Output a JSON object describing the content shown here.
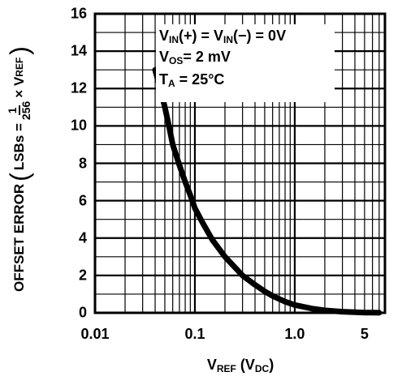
{
  "chart_data": {
    "type": "line",
    "x_scale": "log",
    "xlim": [
      0.01,
      8
    ],
    "ylim": [
      0,
      16
    ],
    "grid": true,
    "x_ticks": [
      "0.01",
      "0.1",
      "1.0",
      "5"
    ],
    "x_tick_values": [
      0.01,
      0.1,
      1.0,
      5
    ],
    "y_ticks": [
      "0",
      "2",
      "4",
      "6",
      "8",
      "10",
      "12",
      "14",
      "16"
    ],
    "xlabel": {
      "main": "V",
      "sub": "REF",
      "unit_open": " (V",
      "unit_sub": "DC",
      "unit_close": ")"
    },
    "ylabel": {
      "prefix": "OFFSET ERROR",
      "lsbs": "LSBs =",
      "num": "1",
      "den": "256",
      "times": "× V",
      "sub": "REF"
    },
    "annotations": {
      "line1": {
        "a": "V",
        "a_sub": "IN",
        "b": "(+) = V",
        "b_sub": "IN",
        "c": "(−) = 0V"
      },
      "line2": {
        "a": "V",
        "a_sub": "OS",
        "b": "= 2 mV"
      },
      "line3": {
        "a": "T",
        "a_sub": "A",
        "b": " =  25°C"
      }
    },
    "series": [
      {
        "x": [
          0.04,
          0.045,
          0.05,
          0.055,
          0.06,
          0.07,
          0.08,
          0.09,
          0.1,
          0.12,
          0.15,
          0.2,
          0.3,
          0.4,
          0.5,
          0.6,
          0.8,
          1.0,
          1.5,
          2.0,
          3.0,
          4.0,
          5.0,
          6.0,
          7.0
        ],
        "y": [
          13.0,
          12.0,
          11.0,
          10.0,
          9.0,
          7.9,
          7.0,
          6.3,
          5.6,
          4.8,
          3.9,
          3.0,
          2.0,
          1.5,
          1.15,
          0.9,
          0.6,
          0.42,
          0.22,
          0.13,
          0.06,
          0.03,
          0.015,
          0.01,
          0.005
        ]
      }
    ]
  }
}
